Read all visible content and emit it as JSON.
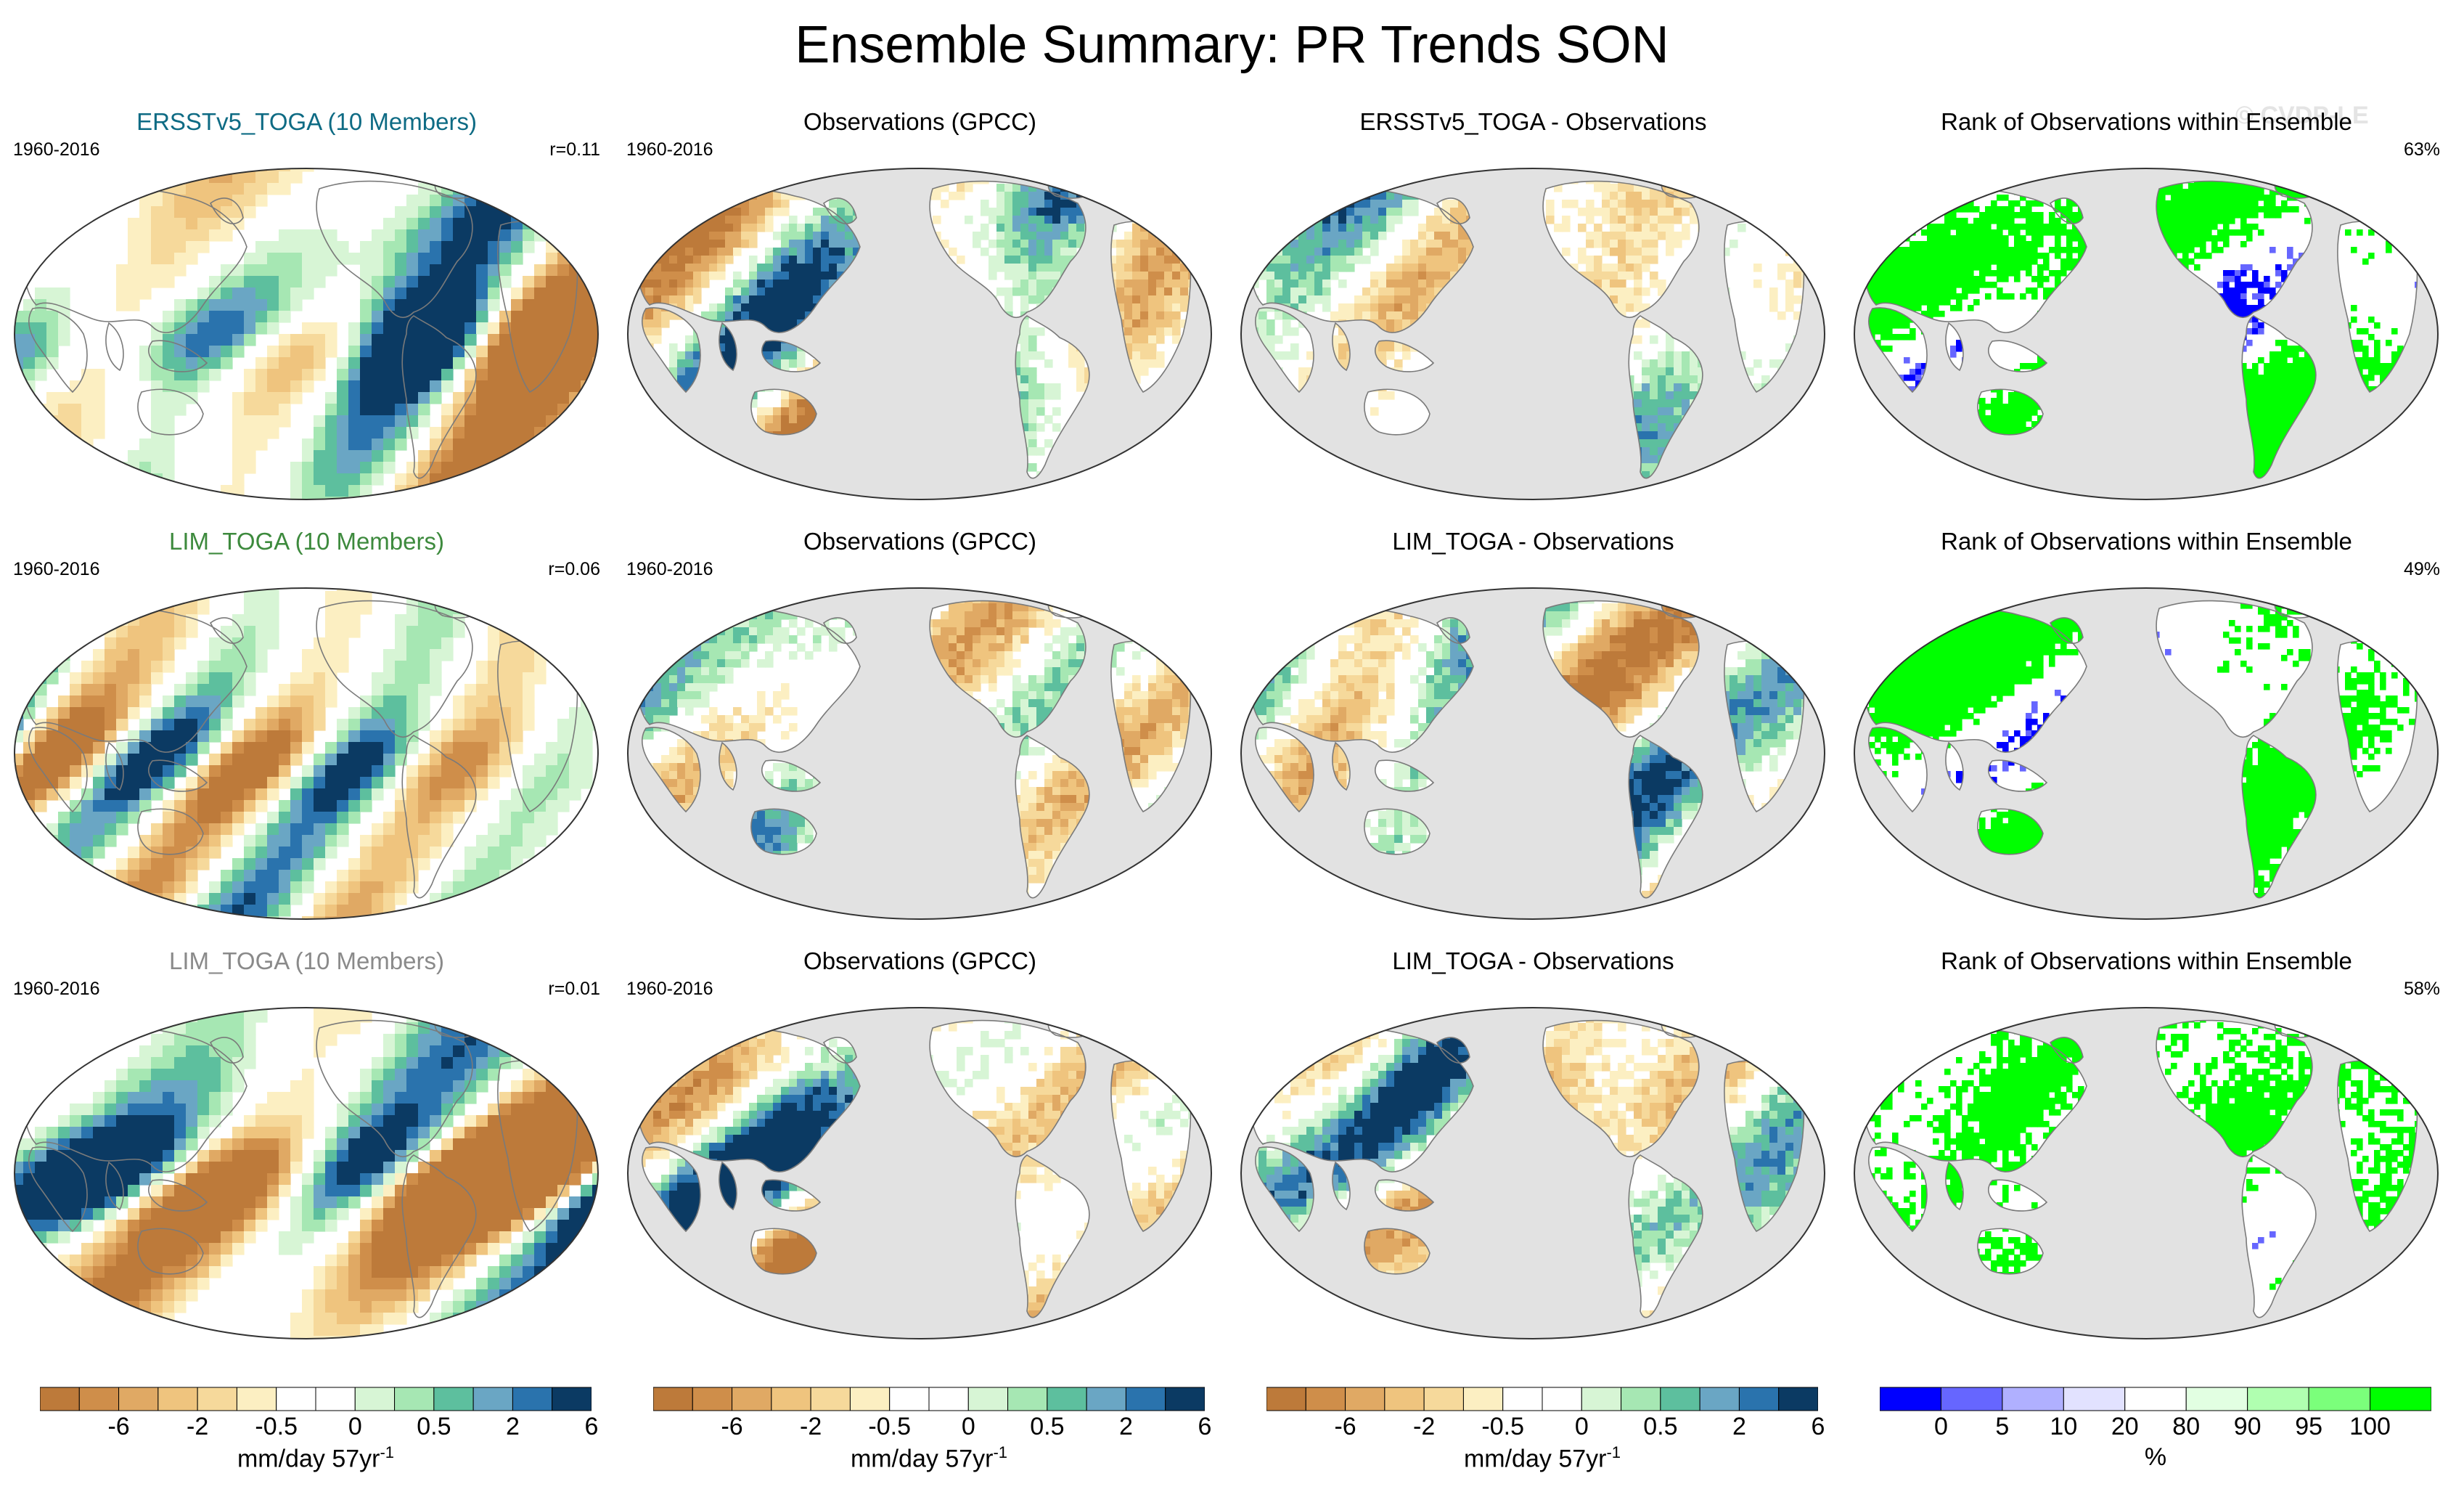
{
  "title": "Ensemble Summary: PR Trends SON",
  "watermark": "© CVDP-LE",
  "colors": {
    "ocean_gray": "#e2e2e2",
    "land_white": "#ffffff",
    "coast": "#7a7a7a",
    "brown": [
      "#bd7a3a",
      "#cf8e4a",
      "#e0a964",
      "#efc47e",
      "#f6d99b",
      "#fcefc2"
    ],
    "green_blue": [
      "#d7f5d5",
      "#a6e7b3",
      "#5dbf9e",
      "#6aa6c4",
      "#2a73ad",
      "#0b3a63"
    ],
    "rank": [
      "#0000ff",
      "#6666ff",
      "#b0b0ff",
      "#e2e2ff",
      "#ffffff",
      "#e2ffe2",
      "#b0ffb0",
      "#7bff7b",
      "#00ff00"
    ]
  },
  "rows": [
    {
      "model": {
        "title": "ERSSTv5_TOGA (10 Members)",
        "title_color": "#0e6b84",
        "period": "1960-2016",
        "corr": "r=0.11"
      },
      "obs": {
        "title": "Observations (GPCC)",
        "period": "1960-2016"
      },
      "diff": {
        "title": "ERSSTv5_TOGA - Observations"
      },
      "rank": {
        "title": "Rank of Observations within Ensemble",
        "pct": "63%"
      }
    },
    {
      "model": {
        "title": "LIM_TOGA (10 Members)",
        "title_color": "#3d8a3d",
        "period": "1960-2016",
        "corr": "r=0.06"
      },
      "obs": {
        "title": "Observations (GPCC)",
        "period": "1960-2016"
      },
      "diff": {
        "title": "LIM_TOGA - Observations"
      },
      "rank": {
        "title": "Rank of Observations within Ensemble",
        "pct": "49%"
      }
    },
    {
      "model": {
        "title": "LIM_TOGA (10 Members)",
        "title_color": "#8a8a8a",
        "period": "1960-2016",
        "corr": "r=0.01"
      },
      "obs": {
        "title": "Observations (GPCC)",
        "period": "1960-2016"
      },
      "diff": {
        "title": "LIM_TOGA - Observations"
      },
      "rank": {
        "title": "Rank of Observations within Ensemble",
        "pct": "58%"
      }
    }
  ],
  "colorbars": [
    {
      "ticks": [
        "-6",
        "-2",
        "-0.5",
        "0",
        "0.5",
        "2",
        "6"
      ],
      "unit": "mm/day 57yr",
      "unit_exp": "-1"
    },
    {
      "ticks": [
        "-6",
        "-2",
        "-0.5",
        "0",
        "0.5",
        "2",
        "6"
      ],
      "unit": "mm/day 57yr",
      "unit_exp": "-1"
    },
    {
      "ticks": [
        "-6",
        "-2",
        "-0.5",
        "0",
        "0.5",
        "2",
        "6"
      ],
      "unit": "mm/day 57yr",
      "unit_exp": "-1"
    },
    {
      "ticks": [
        "0",
        "5",
        "10",
        "20",
        "80",
        "90",
        "95",
        "100"
      ],
      "unit": "%"
    }
  ]
}
